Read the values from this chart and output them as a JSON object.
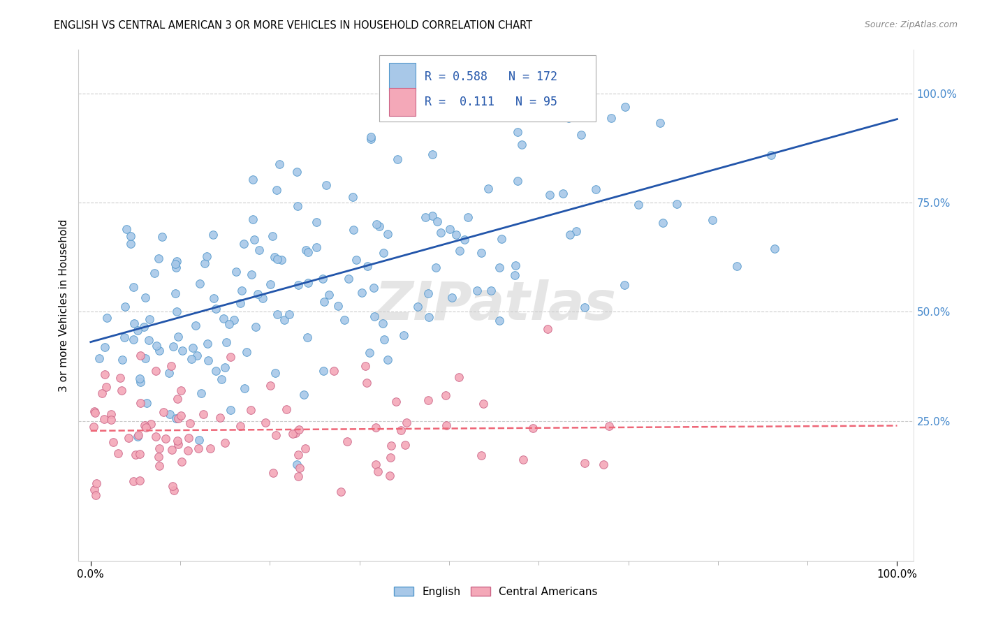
{
  "title": "ENGLISH VS CENTRAL AMERICAN 3 OR MORE VEHICLES IN HOUSEHOLD CORRELATION CHART",
  "source": "Source: ZipAtlas.com",
  "ylabel": "3 or more Vehicles in Household",
  "watermark": "ZIPatlas",
  "english_color": "#a8c8e8",
  "english_edge_color": "#5599cc",
  "central_color": "#f4a8b8",
  "central_edge_color": "#cc6688",
  "english_line_color": "#2255aa",
  "central_line_color": "#ee6677",
  "legend_english_label": "English",
  "legend_central_label": "Central Americans",
  "R_english": 0.588,
  "N_english": 172,
  "R_central": 0.111,
  "N_central": 95,
  "ytick_values": [
    0.25,
    0.5,
    0.75,
    1.0
  ],
  "ytick_labels": [
    "25.0%",
    "50.0%",
    "75.0%",
    "100.0%"
  ],
  "grid_color": "#cccccc",
  "spine_color": "#cccccc"
}
